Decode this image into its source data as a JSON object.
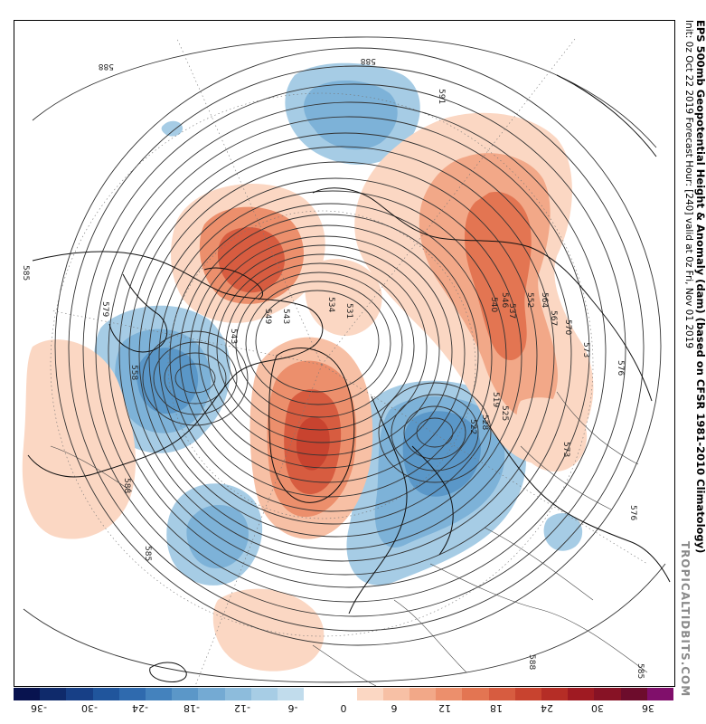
{
  "title": {
    "main": "EPS 500mb Geopotential Height & Anomaly (dam) (based on CFSR 1981-2010 Climatology)",
    "sub": "Init: 0z Oct 22 2019   Forecast Hour: [240]   valid at 0z Fri, Nov 01 2019"
  },
  "credit": "TROPICALTIDBITS.COM",
  "contour_labels": [
    "588",
    "585",
    "591",
    "570",
    "573",
    "576",
    "585",
    "588",
    "585",
    "537",
    "531",
    "534",
    "543",
    "552",
    "549",
    "540",
    "546",
    "564",
    "567",
    "528",
    "525",
    "522",
    "519",
    "543",
    "558",
    "579",
    "573",
    "576",
    "588",
    "585"
  ],
  "colors": {
    "colorbar": [
      "#08134f",
      "#0f2a6b",
      "#173f86",
      "#20559c",
      "#2f6aae",
      "#4482bd",
      "#5b97c8",
      "#74aad3",
      "#8dbcdc",
      "#a7cde5",
      "#c1dcec",
      "#ffffff",
      "#ffffff",
      "#fbd7c3",
      "#f7c0a5",
      "#f2a888",
      "#ec8f6c",
      "#e37552",
      "#d75c40",
      "#c8432f",
      "#b52d26",
      "#9f1a22",
      "#871225",
      "#6d0c2c",
      "#800f6b"
    ],
    "warm_anomaly": "#e0694f",
    "cold_anomaly": "#5a97c8"
  },
  "colorbar_ticks": [
    "-36",
    "-30",
    "-24",
    "-18",
    "-12",
    "-6",
    "0",
    "6",
    "12",
    "18",
    "24",
    "30",
    "36"
  ]
}
